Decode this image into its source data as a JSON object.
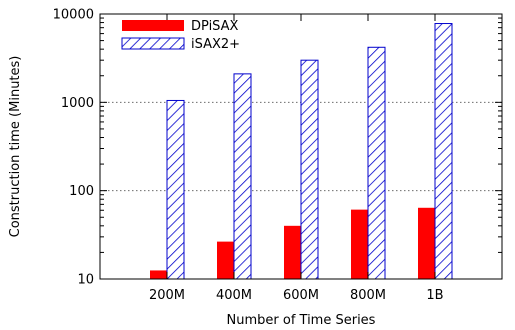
{
  "chart_data": {
    "type": "bar",
    "title": "",
    "xlabel": "Number of Time Series",
    "ylabel": "Construction time (Minutes)",
    "yscale": "log",
    "ylim": [
      10,
      10000
    ],
    "yticks": [
      10,
      100,
      1000,
      10000
    ],
    "ytick_labels": [
      "10",
      "100",
      "1000",
      "10000"
    ],
    "grid": "horizontal dotted",
    "legend_position": "top-left",
    "categories": [
      "200M",
      "400M",
      "600M",
      "800M",
      "1B"
    ],
    "series": [
      {
        "name": "DPiSAX",
        "style": "solid",
        "color": "#ff0000",
        "values": [
          12.5,
          26.5,
          40,
          61,
          64
        ]
      },
      {
        "name": "iSAX2+",
        "style": "hatched",
        "color": "#0000cc",
        "values": [
          1050,
          2100,
          3000,
          4200,
          7800
        ]
      }
    ]
  }
}
